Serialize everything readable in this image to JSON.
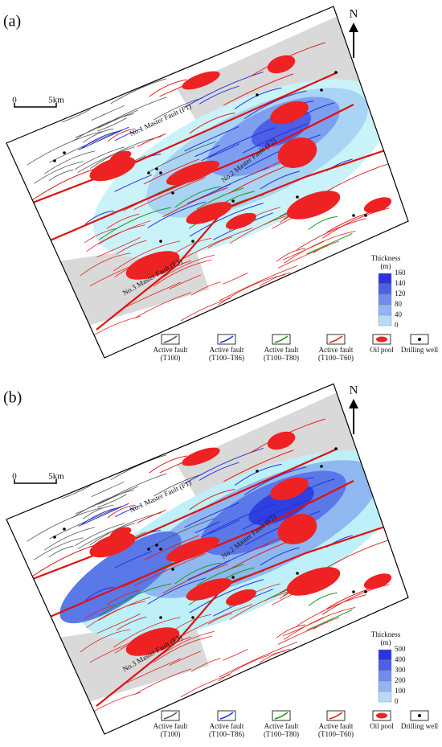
{
  "panels": [
    {
      "label": "(a)",
      "north": "N",
      "scale_bar": {
        "zero": "0",
        "distance": "5km"
      },
      "fault_labels": [
        "No.1 Master Fault (F1)",
        "No.2 Master Fault (F2)",
        "No.3 Master Fault (F3)"
      ],
      "thickness_legend": {
        "title": "Thickness",
        "unit": "(m)",
        "ticks": [
          "160",
          "140",
          "120",
          "80",
          "40",
          "0"
        ]
      },
      "legend": [
        {
          "label": "Active fault",
          "sub": "(T100)"
        },
        {
          "label": "Active fault",
          "sub": "(T100–T86)"
        },
        {
          "label": "Active fault",
          "sub": "(T100–T80)"
        },
        {
          "label": "Active fault",
          "sub": "(T100–T60)"
        },
        {
          "label": "Oil  pool"
        },
        {
          "label": "Drilling well"
        }
      ]
    },
    {
      "label": "(b)",
      "north": "N",
      "scale_bar": {
        "zero": "0",
        "distance": "5km"
      },
      "fault_labels": [
        "No.1 Master Fault (F1)",
        "No.2 Master Fault (F2)",
        "No.3 Master Fault (F3)"
      ],
      "thickness_legend": {
        "title": "Thickness",
        "unit": "(m)",
        "ticks": [
          "500",
          "400",
          "300",
          "200",
          "100",
          "0"
        ]
      },
      "legend": [
        {
          "label": "Active fault",
          "sub": "(T100)"
        },
        {
          "label": "Active fault",
          "sub": "(T100–T86)"
        },
        {
          "label": "Active fault",
          "sub": "(T100–T80)"
        },
        {
          "label": "Active fault",
          "sub": "(T100–T60)"
        },
        {
          "label": "Oil  pool"
        },
        {
          "label": "Drilling well"
        }
      ]
    }
  ]
}
